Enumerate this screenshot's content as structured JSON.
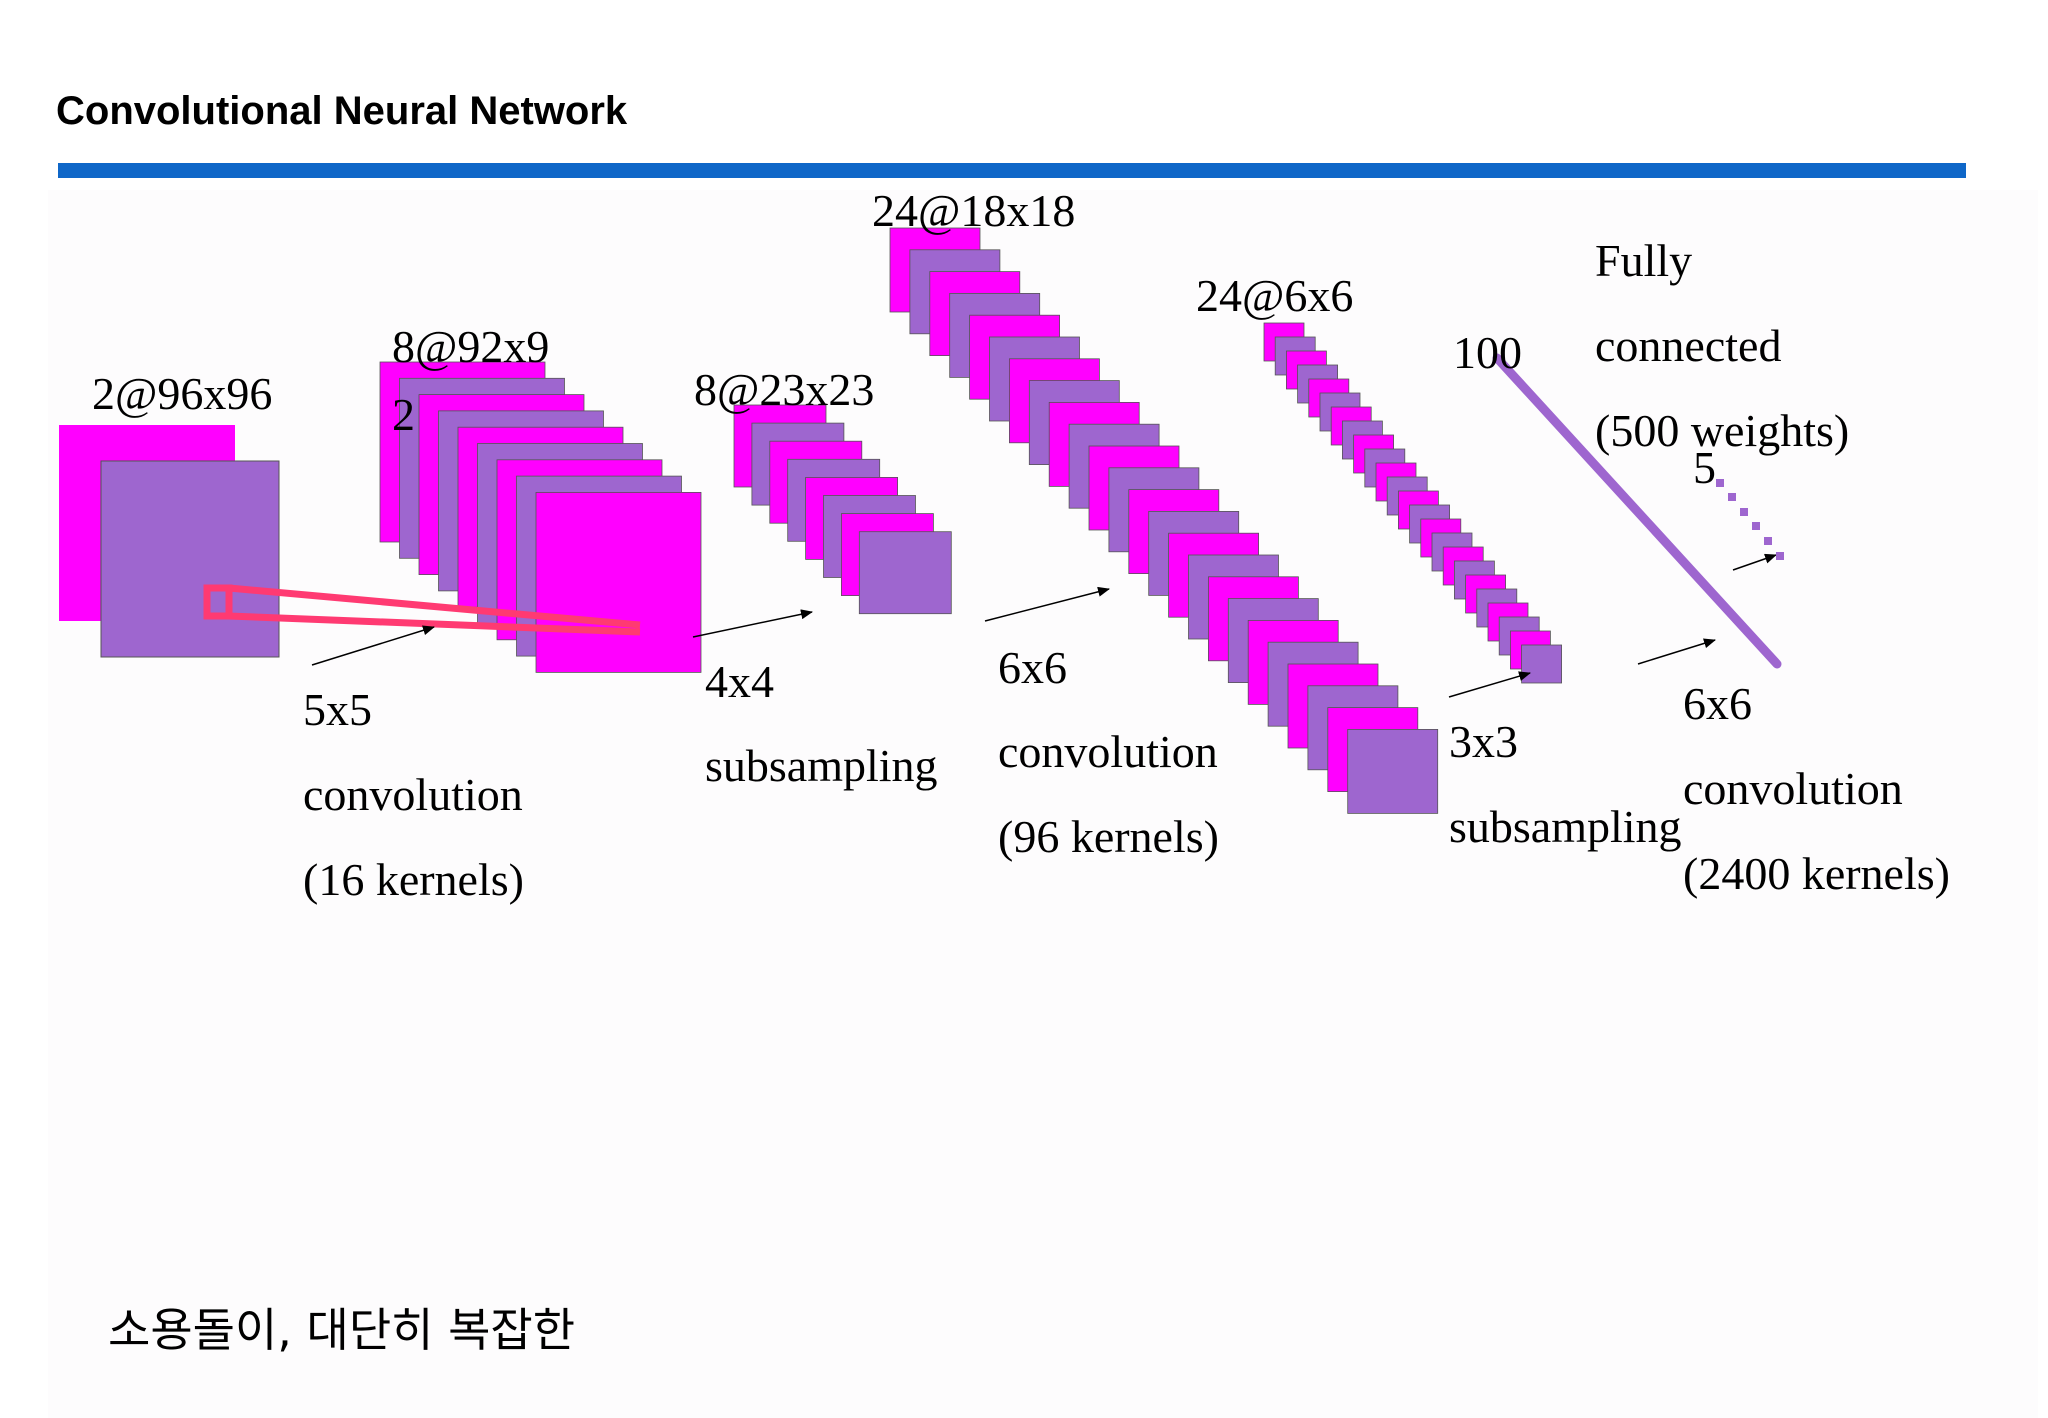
{
  "slide": {
    "title": "Convolutional Neural Network",
    "caption": "소용돌이, 대단히 복잡한"
  },
  "colors": {
    "rule": "#0f67c8",
    "front_map": "#9e66cf",
    "back_map": "#ff00ff",
    "fc_line": "#9e66cf",
    "receptive_field": "#ff3a72"
  },
  "layers": {
    "input": "2@96x96",
    "conv1_maps": "8@92x9",
    "conv1_maps_wrap": "2",
    "pool1_maps": "8@23x23",
    "conv2_maps": "24@18x18",
    "pool2_maps": "24@6x6",
    "fc_units": "100",
    "fc_out": "5"
  },
  "operations": {
    "conv1": [
      "5x5",
      "convolution",
      "(16 kernels)"
    ],
    "pool1": [
      "4x4",
      "subsampling"
    ],
    "conv2": [
      "6x6",
      "convolution",
      "(96 kernels)"
    ],
    "pool2": [
      "3x3",
      "subsampling"
    ],
    "conv3": [
      "6x6",
      "convolution",
      "(2400 kernels)"
    ],
    "fc": [
      "Fully",
      "connected",
      "(500 weights)"
    ]
  }
}
